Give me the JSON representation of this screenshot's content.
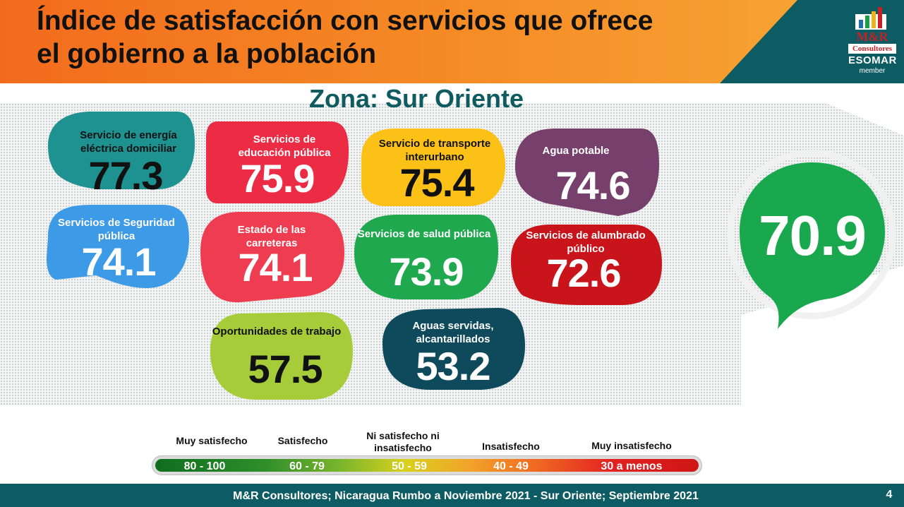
{
  "title": "Índice de satisfacción con servicios que ofrece el gobierno  a la población",
  "zone": "Zona: Sur Oriente",
  "logo": {
    "brand": "M&R",
    "sub": "Consultores",
    "esomar": "ESOMAR",
    "member": "member"
  },
  "overall": {
    "value": "70.9",
    "color": "#1aa84f"
  },
  "services": [
    {
      "label": "Servicio de energía eléctrica domiciliar",
      "value": "77.3",
      "color": "#1e9191",
      "text_color": "#111111"
    },
    {
      "label": "Servicios de educación pública",
      "value": "75.9",
      "color": "#ec2b45",
      "text_color": "#ffffff"
    },
    {
      "label": "Servicio de transporte interurbano",
      "value": "75.4",
      "color": "#fcc117",
      "text_color": "#111111"
    },
    {
      "label": "Agua potable",
      "value": "74.6",
      "color": "#773f6c",
      "text_color": "#ffffff"
    },
    {
      "label": "Servicios de Seguridad pública",
      "value": "74.1",
      "color": "#3d9ae6",
      "text_color": "#ffffff"
    },
    {
      "label": "Estado de las carreteras",
      "value": "74.1",
      "color": "#ee3d51",
      "text_color": "#ffffff"
    },
    {
      "label": "Servicios de salud pública",
      "value": "73.9",
      "color": "#1fa84e",
      "text_color": "#ffffff"
    },
    {
      "label": "Servicios de alumbrado público",
      "value": "72.6",
      "color": "#c8141a",
      "text_color": "#ffffff"
    },
    {
      "label": "Oportunidades de trabajo",
      "value": "57.5",
      "color": "#a6cc3a",
      "text_color": "#111111"
    },
    {
      "label": "Aguas servidas, alcantarillados",
      "value": "53.2",
      "color": "#0e4a5c",
      "text_color": "#ffffff"
    }
  ],
  "legend": {
    "categories": [
      "Muy satisfecho",
      "Satisfecho",
      "Ni satisfecho ni insatisfecho",
      "Insatisfecho",
      "Muy insatisfecho"
    ],
    "ranges": [
      "80 - 100",
      "60 - 79",
      "50 - 59",
      "40 - 49",
      "30 a menos"
    ]
  },
  "footer": "M&R Consultores; Nicaragua Rumbo a Noviembre 2021 - Sur Oriente; Septiembre 2021",
  "page_number": "4"
}
